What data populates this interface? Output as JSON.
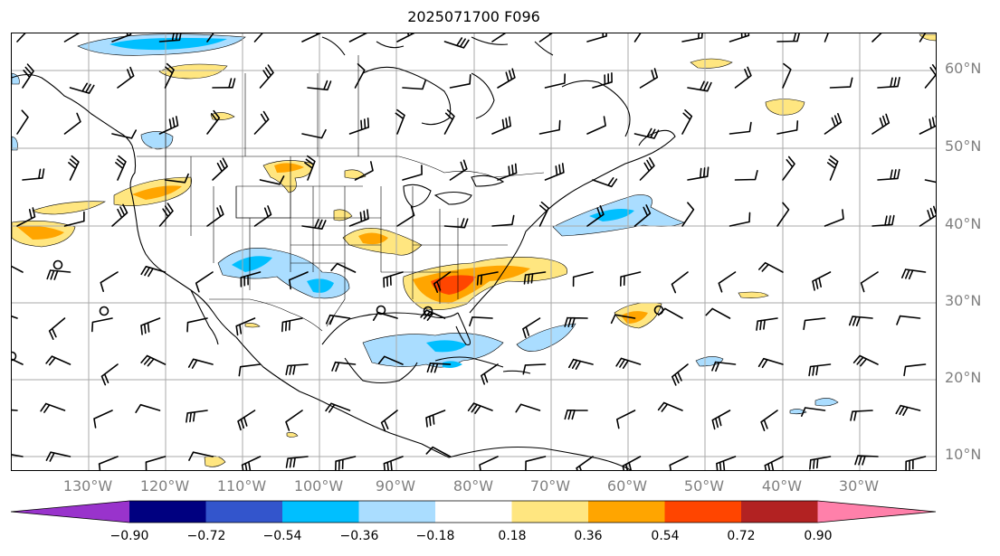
{
  "title": "2025071700 F096",
  "lat_labels": [
    "60°N",
    "50°N",
    "40°N",
    "30°N",
    "20°N",
    "10°N"
  ],
  "lon_labels": [
    "130°W",
    "120°W",
    "110°W",
    "100°W",
    "90°W",
    "80°W",
    "70°W",
    "60°W",
    "50°W",
    "40°W",
    "30°W"
  ],
  "colorbar": {
    "ticks": [
      "−0.90",
      "−0.72",
      "−0.54",
      "−0.36",
      "−0.18",
      "0.18",
      "0.36",
      "0.54",
      "0.72",
      "0.90"
    ],
    "colors": [
      "#9933cc",
      "#000080",
      "#3355cc",
      "#00bfff",
      "#aaddff",
      "#ffffff",
      "#ffe680",
      "#ffa500",
      "#ff4500",
      "#b22222",
      "#ff80aa"
    ],
    "extend": "both"
  },
  "map": {
    "projection": "plate-carree",
    "extent": {
      "lon_min": -139,
      "lon_max": -19,
      "lat_min": 7,
      "lat_max": 65
    },
    "gridlines": true,
    "features": [
      "coastlines",
      "country-borders",
      "state-borders",
      "wind-barbs"
    ]
  }
}
